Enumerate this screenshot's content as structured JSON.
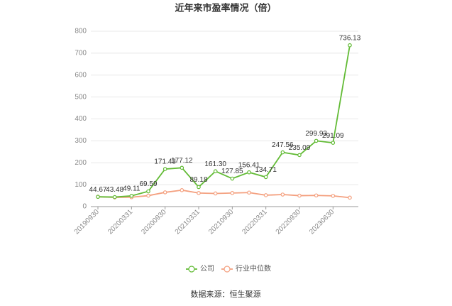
{
  "chart_data": {
    "type": "line",
    "title": "近年来市盈率情况（倍）",
    "categories": [
      "20190930",
      null,
      "20200331",
      null,
      "20200930",
      null,
      "20210331",
      null,
      "20210930",
      null,
      "20220331",
      null,
      "20220930",
      null,
      "20230630",
      null
    ],
    "series": [
      {
        "name": "公司",
        "color": "#62bb35",
        "values": [
          44.67,
          43.48,
          49.11,
          69.59,
          171.43,
          177.12,
          89.18,
          161.3,
          127.85,
          156.41,
          134.71,
          247.56,
          235.09,
          299.93,
          291.09,
          736.13
        ],
        "value_labels": [
          "44.67",
          "43.48",
          "49.11",
          "69.59",
          "171.43",
          "177.12",
          "89.18",
          "161.30",
          "127.85",
          "156.41",
          "134.71",
          "247.56",
          "235.09",
          "299.93",
          "291.09",
          "736.13"
        ]
      },
      {
        "name": "行业中位数",
        "color": "#f4a07f",
        "values": [
          45,
          42,
          43,
          50,
          65,
          75,
          62,
          60,
          62,
          64,
          52,
          55,
          50,
          51,
          49,
          41
        ]
      }
    ],
    "ylim": [
      0,
      800
    ],
    "yticks": [
      0,
      100,
      200,
      300,
      400,
      500,
      600,
      700,
      800
    ],
    "grid": true,
    "source": "数据来源：恒生聚源"
  }
}
